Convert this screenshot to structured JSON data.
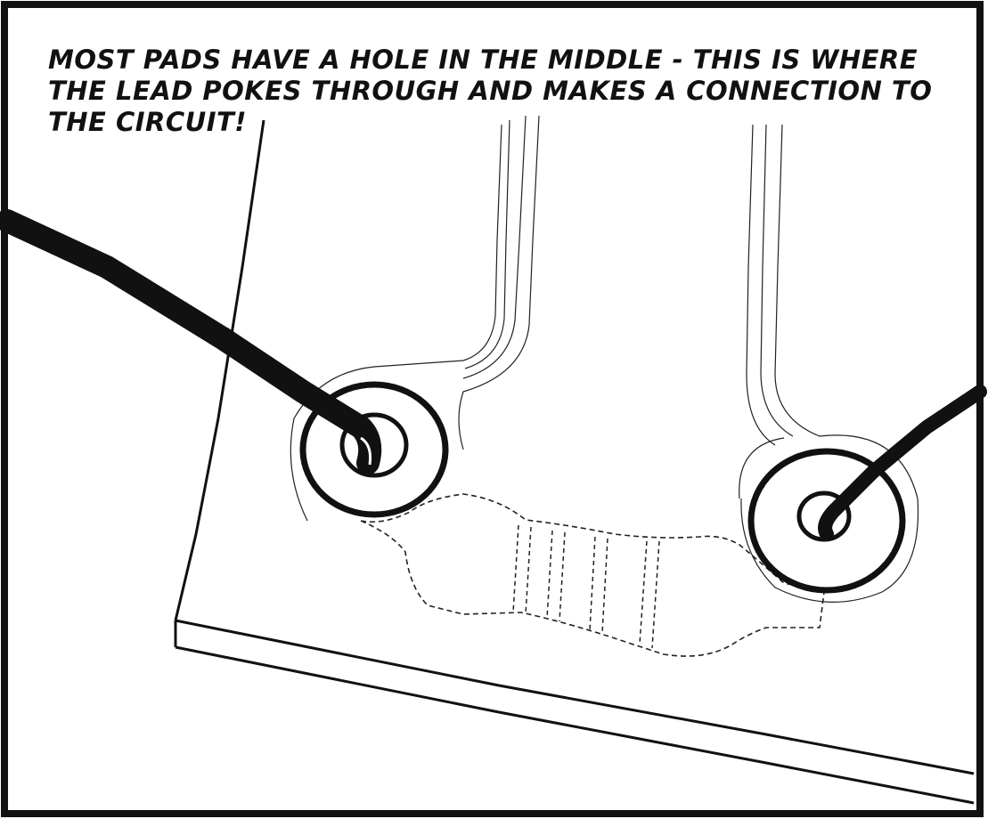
{
  "caption": {
    "text": "MOST PADS HAVE A HOLE IN THE MIDDLE - THIS IS WHERE THE LEAD POKES THROUGH AND MAKES A CONNECTION TO THE CIRCUIT!"
  },
  "colors": {
    "ink": "#111111",
    "background": "#ffffff"
  },
  "illustration": {
    "subject": "circuit board with two pads, leads poking through holes, hidden resistor underneath",
    "icons": [
      "pad-ring-icon",
      "component-lead-icon",
      "hidden-resistor-icon"
    ]
  }
}
